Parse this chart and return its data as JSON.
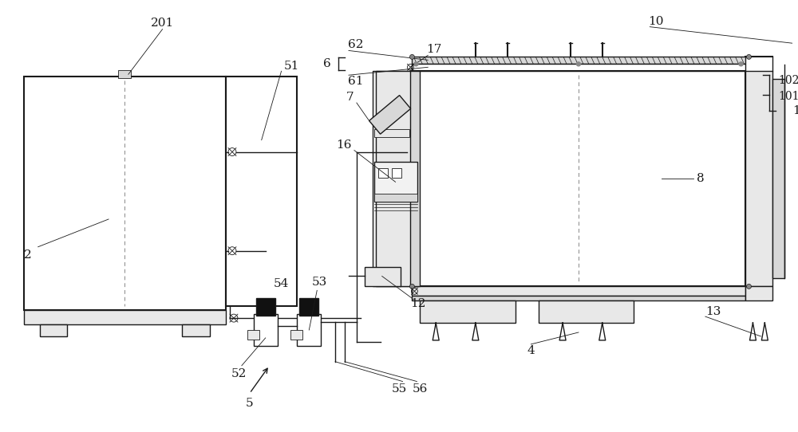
{
  "bg_color": "#ffffff",
  "line_color": "#1a1a1a",
  "gray1": "#d8d8d8",
  "gray2": "#e8e8e8",
  "gray3": "#f2f2f2",
  "dark": "#1a1a1a",
  "hatch_gray": "#c0c0c0"
}
